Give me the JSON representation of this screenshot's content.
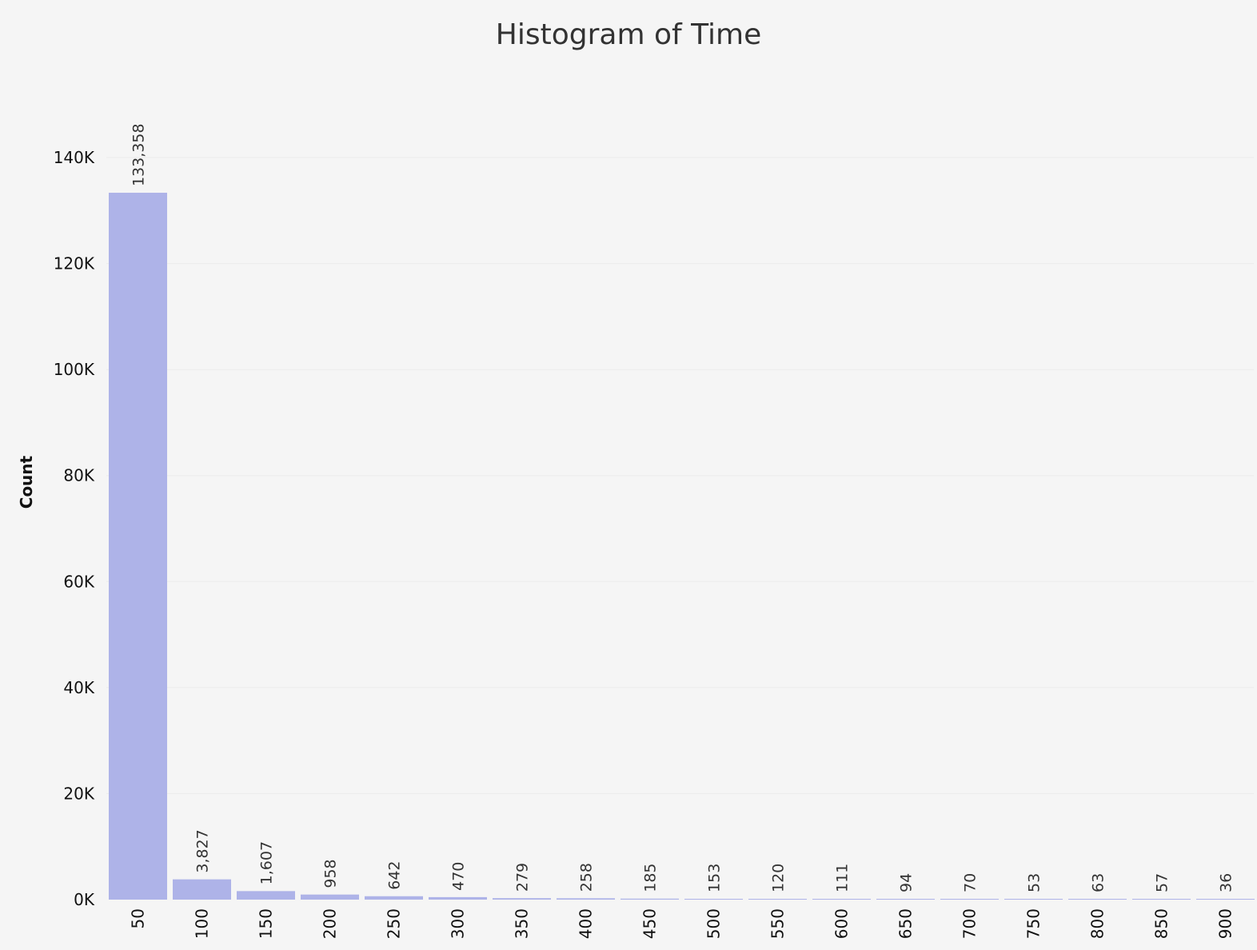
{
  "chart_data": {
    "type": "bar",
    "title": "Histogram of Time",
    "xlabel": "",
    "ylabel": "Count",
    "categories": [
      "50",
      "100",
      "150",
      "200",
      "250",
      "300",
      "350",
      "400",
      "450",
      "500",
      "550",
      "600",
      "650",
      "700",
      "750",
      "800",
      "850",
      "900"
    ],
    "values": [
      133358,
      3827,
      1607,
      958,
      642,
      470,
      279,
      258,
      185,
      153,
      120,
      111,
      94,
      70,
      53,
      63,
      57,
      36
    ],
    "value_labels": [
      "133,358",
      "3,827",
      "1,607",
      "958",
      "642",
      "470",
      "279",
      "258",
      "185",
      "153",
      "120",
      "111",
      "94",
      "70",
      "53",
      "63",
      "57",
      "36"
    ],
    "yticks": [
      0,
      20000,
      40000,
      60000,
      80000,
      100000,
      120000,
      140000
    ],
    "ytick_labels": [
      "0K",
      "20K",
      "40K",
      "60K",
      "80K",
      "100K",
      "120K",
      "140K"
    ],
    "ylim": [
      0,
      150000
    ],
    "grid": true,
    "bar_color": "#aeb3e8"
  }
}
